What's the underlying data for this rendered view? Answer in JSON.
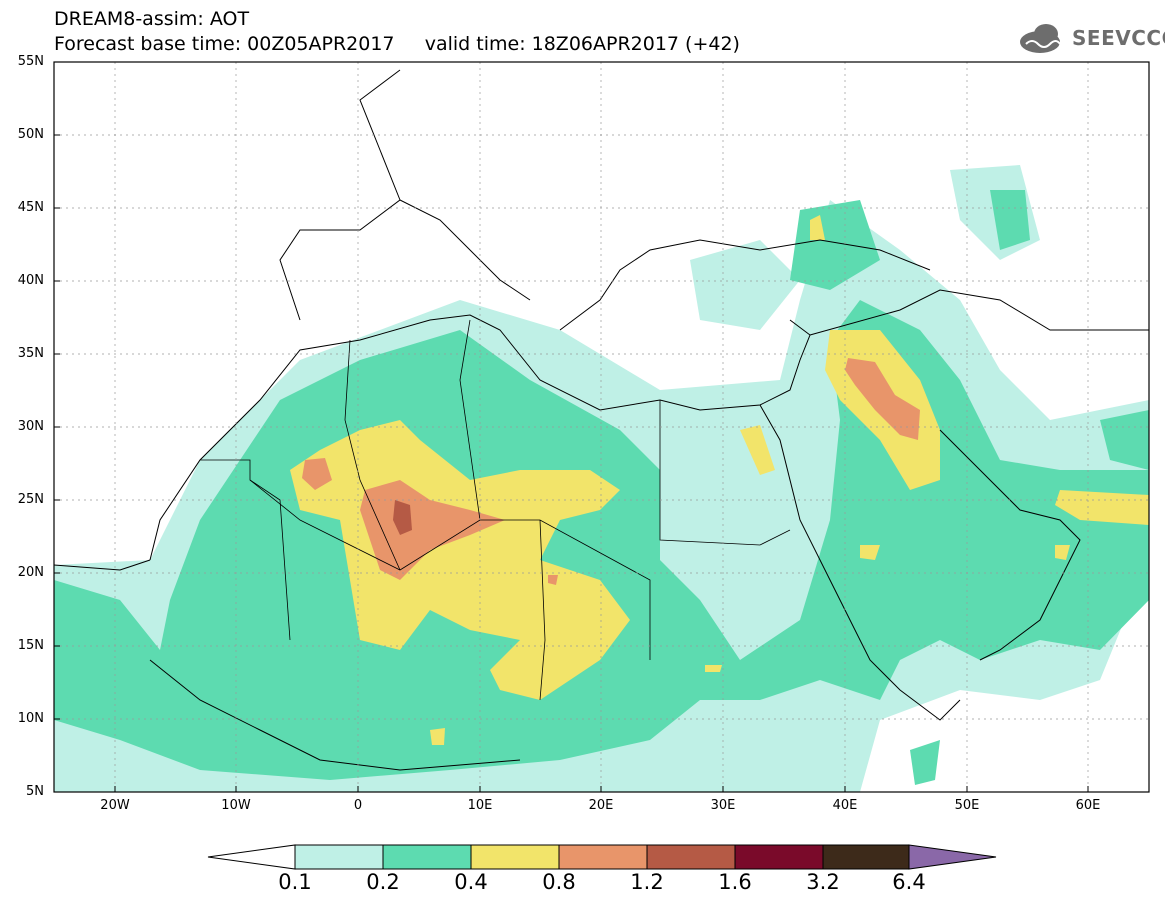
{
  "header": {
    "model_line": "DREAM8-assim: AOT",
    "base_time_label": "Forecast base time: 00Z05APR2017",
    "valid_time_label": "valid time: 18Z06APR2017 (+42)"
  },
  "logo": {
    "text": "SEEVCCC",
    "icon": "cloud-logo-icon"
  },
  "map": {
    "lat_ticks": [
      "55N",
      "50N",
      "45N",
      "40N",
      "35N",
      "30N",
      "25N",
      "20N",
      "15N",
      "10N",
      "5N"
    ],
    "lon_ticks": [
      "20W",
      "10W",
      "0",
      "10E",
      "20E",
      "30E",
      "40E",
      "50E",
      "60E"
    ],
    "extent": {
      "lon_min": -25,
      "lon_max": 65,
      "lat_min": 5,
      "lat_max": 55
    }
  },
  "colorbar": {
    "labels": [
      "0.1",
      "0.2",
      "0.4",
      "0.8",
      "1.2",
      "1.6",
      "3.2",
      "6.4"
    ],
    "colors": [
      "#ffffff",
      "#bff0e6",
      "#5ddbb0",
      "#f2e46a",
      "#e8956a",
      "#b55a45",
      "#7a0a2a",
      "#3d2a1a",
      "#8a68a8"
    ]
  }
}
